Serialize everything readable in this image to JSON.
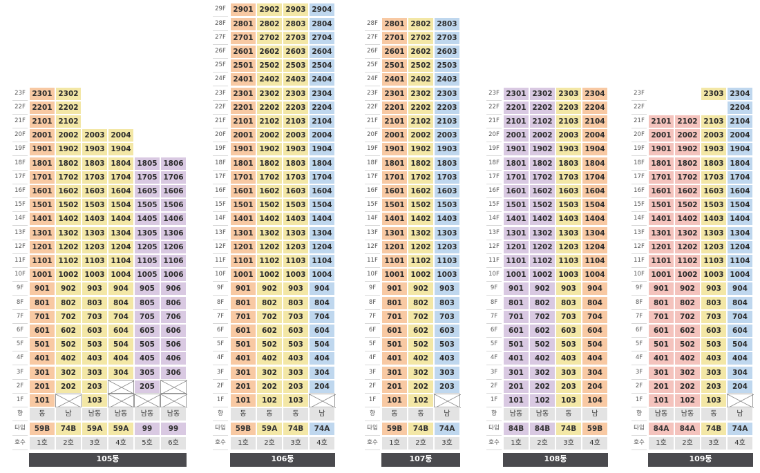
{
  "row_labels": {
    "direction": "향",
    "type": "타입",
    "unit_no": "호수"
  },
  "floor_suffix": "F",
  "colors": {
    "orange": "#f8c9a3",
    "yellow": "#f3e7a6",
    "purple": "#d9c9e2",
    "blue": "#bfd7ee",
    "salmon": "#f4c3bd",
    "gray": "#e3e3e3",
    "building_bar": "#4a4a4e"
  },
  "buildings": [
    {
      "name": "105동",
      "columns": [
        {
          "line": 1,
          "color": "orange",
          "top_floor": 23,
          "missing": [],
          "direction": "동",
          "type": "59B",
          "unit_label": "1호"
        },
        {
          "line": 2,
          "color": "yellow",
          "top_floor": 23,
          "missing": [
            1
          ],
          "direction": "남",
          "type": "74B",
          "unit_label": "2호"
        },
        {
          "line": 3,
          "color": "yellow",
          "top_floor": 20,
          "missing": [],
          "direction": "남동",
          "type": "59A",
          "unit_label": "3호"
        },
        {
          "line": 4,
          "color": "yellow",
          "top_floor": 20,
          "missing": [
            1,
            2
          ],
          "direction": "남동",
          "type": "59A",
          "unit_label": "4호"
        },
        {
          "line": 5,
          "color": "purple",
          "top_floor": 18,
          "missing": [
            1
          ],
          "direction": "남동",
          "type": "99",
          "unit_label": "5호"
        },
        {
          "line": 6,
          "color": "purple",
          "top_floor": 18,
          "missing": [
            1,
            2
          ],
          "direction": "남동",
          "type": "99",
          "unit_label": "6호"
        }
      ]
    },
    {
      "name": "106동",
      "columns": [
        {
          "line": 1,
          "color": "orange",
          "top_floor": 29,
          "missing": [],
          "direction": "동",
          "type": "59B",
          "unit_label": "1호"
        },
        {
          "line": 2,
          "color": "yellow",
          "top_floor": 29,
          "missing": [],
          "direction": "동",
          "type": "59A",
          "unit_label": "2호"
        },
        {
          "line": 3,
          "color": "yellow",
          "top_floor": 29,
          "missing": [],
          "direction": "동",
          "type": "74B",
          "unit_label": "3호"
        },
        {
          "line": 4,
          "color": "blue",
          "top_floor": 29,
          "missing": [
            1
          ],
          "direction": "남",
          "type": "74A",
          "unit_label": "4호"
        }
      ]
    },
    {
      "name": "107동",
      "columns": [
        {
          "line": 1,
          "color": "orange",
          "top_floor": 28,
          "missing": [],
          "direction": "동",
          "type": "59B",
          "unit_label": "1호"
        },
        {
          "line": 2,
          "color": "yellow",
          "top_floor": 28,
          "missing": [],
          "direction": "동",
          "type": "74B",
          "unit_label": "2호"
        },
        {
          "line": 3,
          "color": "blue",
          "top_floor": 28,
          "missing": [
            1
          ],
          "direction": "남",
          "type": "74A",
          "unit_label": "3호"
        }
      ]
    },
    {
      "name": "108동",
      "columns": [
        {
          "line": 1,
          "color": "purple",
          "top_floor": 23,
          "missing": [],
          "direction": "남동",
          "type": "84B",
          "unit_label": "1호"
        },
        {
          "line": 2,
          "color": "purple",
          "top_floor": 23,
          "missing": [],
          "direction": "남동",
          "type": "84B",
          "unit_label": "2호"
        },
        {
          "line": 3,
          "color": "yellow",
          "top_floor": 23,
          "missing": [],
          "direction": "동",
          "type": "74B",
          "unit_label": "3호"
        },
        {
          "line": 4,
          "color": "orange",
          "top_floor": 23,
          "missing": [],
          "direction": "남",
          "type": "59B",
          "unit_label": "4호"
        }
      ]
    },
    {
      "name": "109동",
      "columns": [
        {
          "line": 1,
          "color": "salmon",
          "top_floor": 21,
          "missing": [],
          "direction": "남동",
          "type": "84A",
          "unit_label": "1호"
        },
        {
          "line": 2,
          "color": "salmon",
          "top_floor": 21,
          "missing": [],
          "direction": "남동",
          "type": "84A",
          "unit_label": "2호"
        },
        {
          "line": 3,
          "color": "yellow",
          "top_floor": 23,
          "missing": [
            22
          ],
          "direction": "동",
          "type": "74B",
          "unit_label": "3호"
        },
        {
          "line": 4,
          "color": "blue",
          "top_floor": 23,
          "missing": [
            1
          ],
          "direction": "남",
          "type": "74A",
          "unit_label": "4호"
        }
      ]
    }
  ]
}
